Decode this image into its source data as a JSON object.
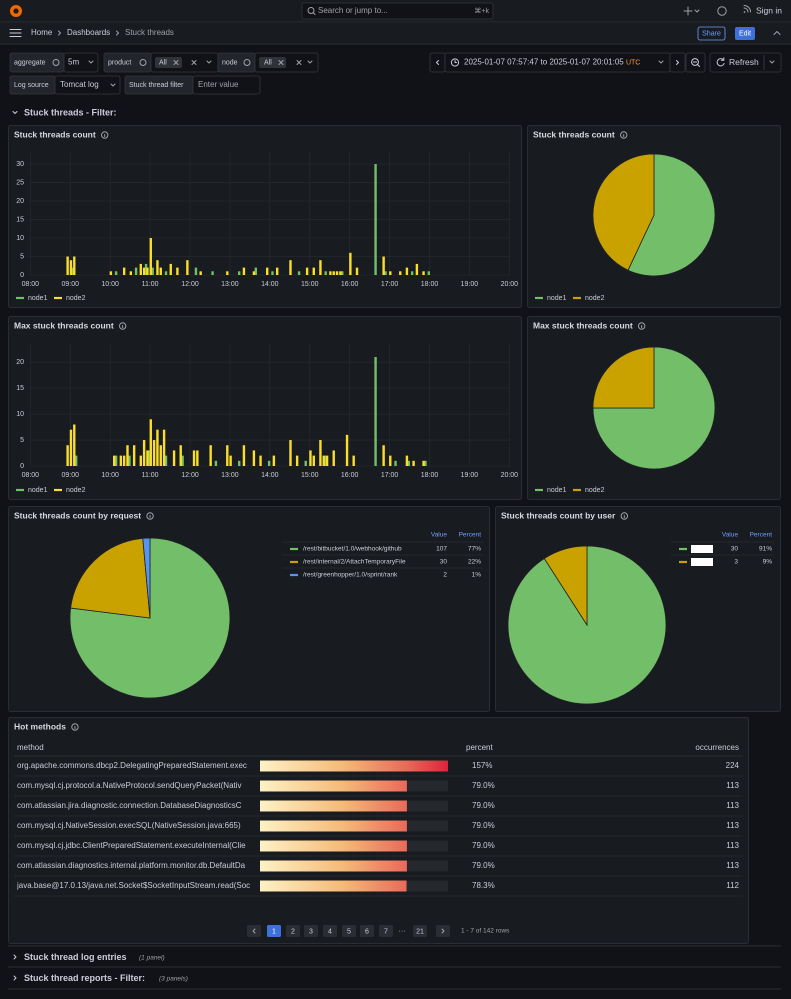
{
  "topbar": {
    "search": "Search or jump to...",
    "shortcut": "⌘+k",
    "sign_in": "Sign in"
  },
  "breadcrumbs": [
    "Home",
    "Dashboards",
    "Stuck threads"
  ],
  "share": "Share",
  "edit": "Edit",
  "variables": {
    "aggregate": {
      "label": "aggregate",
      "value": "5m"
    },
    "product": {
      "label": "product",
      "value": "All"
    },
    "node": {
      "label": "node",
      "value": "All"
    },
    "log_source": {
      "label": "Log source",
      "value": "Tomcat log"
    },
    "filter": {
      "label": "Stuck thread filter",
      "placeholder": "Enter value"
    }
  },
  "time_range": {
    "from": "2025-01-07 07:57:47",
    "joiner": "to",
    "to": "2025-01-07 20:01:05",
    "timezone": "UTC"
  },
  "refresh": "Refresh",
  "rows": [
    {
      "title": "Stuck threads - Filter:"
    },
    {
      "title": "Stuck thread log entries",
      "note": "(1 panel)"
    },
    {
      "title": "Stuck thread reports - Filter:",
      "note": "(3 panels)"
    }
  ],
  "chart_data": [
    {
      "type": "bar",
      "title": "Stuck threads count",
      "xlim": [
        "07:58",
        "20:01"
      ],
      "xticks": [
        "08:00",
        "09:00",
        "10:00",
        "11:00",
        "12:00",
        "13:00",
        "14:00",
        "15:00",
        "16:00",
        "17:00",
        "18:00",
        "19:00",
        "20:00"
      ],
      "ylim": [
        0,
        33
      ],
      "yticks": [
        0,
        5,
        10,
        15,
        20,
        25,
        30
      ],
      "grid": true,
      "series": [
        {
          "name": "node1",
          "color": "#73bf69",
          "x": [
            "09:05",
            "10:10",
            "10:40",
            "10:55",
            "11:05",
            "11:25",
            "12:10",
            "12:35",
            "13:15",
            "13:40",
            "14:05",
            "14:45",
            "15:25",
            "15:50",
            "16:40",
            "16:55",
            "17:35",
            "18:00"
          ],
          "values": [
            2,
            1,
            2,
            3,
            2,
            1,
            2,
            1,
            1,
            2,
            1,
            1,
            1,
            1,
            30,
            1,
            1,
            1
          ]
        },
        {
          "name": "node2",
          "color": "#fade2a",
          "x": [
            "08:55",
            "09:00",
            "09:05",
            "10:00",
            "10:20",
            "10:30",
            "10:45",
            "10:50",
            "10:55",
            "11:00",
            "11:10",
            "11:15",
            "11:30",
            "11:40",
            "11:55",
            "12:15",
            "12:55",
            "13:20",
            "13:35",
            "13:55",
            "14:10",
            "14:30",
            "14:55",
            "15:05",
            "15:15",
            "15:30",
            "15:35",
            "15:40",
            "15:45",
            "16:00",
            "16:10",
            "16:50",
            "17:00",
            "17:15",
            "17:25",
            "17:40",
            "17:50"
          ],
          "values": [
            5,
            4,
            5,
            1,
            2,
            1,
            3,
            2,
            2,
            10,
            4,
            2,
            3,
            2,
            4,
            1,
            1,
            2,
            1,
            2,
            2,
            4,
            2,
            2,
            4,
            1,
            1,
            1,
            1,
            6,
            2,
            5,
            1,
            1,
            2,
            3,
            1
          ]
        }
      ]
    },
    {
      "type": "pie",
      "title": "Stuck threads count",
      "categories": [
        "node1",
        "node2"
      ],
      "values": [
        57,
        43
      ],
      "colors": [
        "#73bf69",
        "#c9a200"
      ]
    },
    {
      "type": "bar",
      "title": "Max stuck threads count",
      "xlim": [
        "07:58",
        "20:01"
      ],
      "xticks": [
        "08:00",
        "09:00",
        "10:00",
        "11:00",
        "12:00",
        "13:00",
        "14:00",
        "15:00",
        "16:00",
        "17:00",
        "18:00",
        "19:00",
        "20:00"
      ],
      "ylim": [
        0,
        23.5
      ],
      "yticks": [
        0,
        5,
        10,
        15,
        20
      ],
      "grid": true,
      "series": [
        {
          "name": "node1",
          "color": "#73bf69",
          "x": [
            "09:10",
            "10:10",
            "10:30",
            "11:00",
            "11:25",
            "11:50",
            "12:40",
            "13:15",
            "14:00",
            "14:55",
            "15:25",
            "16:40",
            "17:10",
            "17:30",
            "17:55"
          ],
          "values": [
            2,
            2,
            2,
            3,
            2,
            2,
            1,
            1,
            1,
            1,
            2,
            21,
            1,
            1,
            1
          ]
        },
        {
          "name": "node2",
          "color": "#fade2a",
          "x": [
            "08:55",
            "09:00",
            "09:05",
            "10:05",
            "10:15",
            "10:20",
            "10:25",
            "10:35",
            "10:45",
            "10:50",
            "10:55",
            "11:00",
            "11:05",
            "11:10",
            "11:15",
            "11:20",
            "11:35",
            "11:45",
            "12:05",
            "12:10",
            "12:30",
            "12:55",
            "13:00",
            "13:20",
            "13:35",
            "13:45",
            "14:05",
            "14:30",
            "14:40",
            "15:00",
            "15:05",
            "15:15",
            "15:20",
            "15:25",
            "15:35",
            "15:55",
            "16:05",
            "16:50",
            "17:00",
            "17:25",
            "17:35",
            "17:50"
          ],
          "values": [
            4,
            7,
            8,
            2,
            2,
            2,
            4,
            4,
            2,
            5,
            3,
            9,
            5,
            7,
            4,
            7,
            3,
            4,
            3,
            3,
            4,
            4,
            2,
            4,
            3,
            2,
            2,
            5,
            2,
            3,
            2,
            5,
            2,
            2,
            3,
            6,
            2,
            4,
            2,
            2,
            1,
            1
          ]
        }
      ]
    },
    {
      "type": "pie",
      "title": "Max stuck threads count",
      "categories": [
        "node1",
        "node2"
      ],
      "values": [
        75,
        25
      ],
      "colors": [
        "#73bf69",
        "#c9a200"
      ]
    },
    {
      "type": "pie",
      "title": "Stuck threads count by request",
      "categories": [
        "/rest/bitbucket/1.0/webhook/github",
        "/rest/internal/2/AttachTemporaryFile",
        "/rest/greenhopper/1.0/sprint/rank"
      ],
      "values": [
        107,
        30,
        2
      ],
      "colors": [
        "#73bf69",
        "#c9a200",
        "#5794f2"
      ],
      "legend_headers": [
        "Value",
        "Percent"
      ],
      "percents": [
        {
          "value": 77,
          "label": "77%"
        },
        {
          "value": 22,
          "label": "22%"
        },
        {
          "value": 1,
          "label": "1%"
        }
      ]
    },
    {
      "type": "pie",
      "title": "Stuck threads count by user",
      "values": [
        30,
        3
      ],
      "colors": [
        "#73bf69",
        "#c9a200"
      ],
      "legend_headers": [
        "Value",
        "Percent"
      ],
      "percents": [
        {
          "value": 91,
          "label": "91%"
        },
        {
          "value": 9,
          "label": "9%"
        }
      ]
    }
  ],
  "hot_methods": {
    "title": "Hot methods",
    "columns": [
      "method",
      "percent",
      "occurrences"
    ],
    "gauge_lim": [
      -200,
      157
    ],
    "rows": [
      {
        "method": "org.apache.commons.dbcp2.DelegatingPreparedStatement.exec",
        "percent": {
          "value": 157,
          "label": "157%"
        },
        "occurrences": 224
      },
      {
        "method": "com.mysql.cj.protocol.a.NativeProtocol.sendQueryPacket(Nativ",
        "percent": {
          "value": 79.0,
          "label": "79.0%"
        },
        "occurrences": 113
      },
      {
        "method": "com.atlassian.jira.diagnostic.connection.DatabaseDiagnosticsC",
        "percent": {
          "value": 79.0,
          "label": "79.0%"
        },
        "occurrences": 113
      },
      {
        "method": "com.mysql.cj.NativeSession.execSQL(NativeSession.java:665)",
        "percent": {
          "value": 79.0,
          "label": "79.0%"
        },
        "occurrences": 113
      },
      {
        "method": "com.mysql.cj.jdbc.ClientPreparedStatement.executeInternal(Clie",
        "percent": {
          "value": 79.0,
          "label": "79.0%"
        },
        "occurrences": 113
      },
      {
        "method": "com.atlassian.diagnostics.internal.platform.monitor.db.DefaultDa",
        "percent": {
          "value": 79.0,
          "label": "79.0%"
        },
        "occurrences": 113
      },
      {
        "method": "java.base@17.0.13/java.net.Socket$SocketInputStream.read(Soc",
        "percent": {
          "value": 78.3,
          "label": "78.3%"
        },
        "occurrences": 112
      }
    ],
    "pages": [
      1,
      2,
      3,
      4,
      5,
      6,
      7
    ],
    "ellipsis": "···",
    "last_page": 21,
    "summary": "1 - 7 of 142 rows"
  }
}
